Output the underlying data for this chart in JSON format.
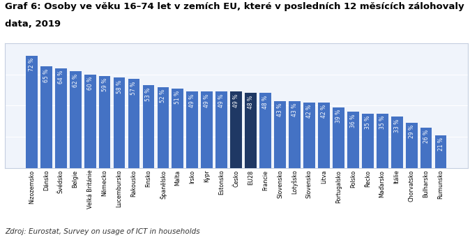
{
  "title_line1": "Graf 6: Osoby ve věku 16–74 let v zemích EU, které v posledních 12 měsících zálohovaly",
  "title_line2": "data, 2019",
  "categories": [
    "Nizozemsko",
    "Dánsko",
    "Švédsko",
    "Belgie",
    "Velká Británie",
    "Německo",
    "Lucembursko",
    "Rakousko",
    "Finsko",
    "Španělsko",
    "Malta",
    "Irsko",
    "Kypr",
    "Estonsko",
    "Česko",
    "EU28",
    "Francie",
    "Slovensko",
    "Lotyšsko",
    "Slovensko",
    "Litva",
    "Portugalsko",
    "Polsko",
    "Řecko",
    "Maďarsko",
    "Itálie",
    "Chorvatsko",
    "Bulharsko",
    "Rumunsko"
  ],
  "values": [
    72,
    65,
    64,
    62,
    60,
    59,
    58,
    57,
    53,
    52,
    51,
    49,
    49,
    49,
    49,
    48,
    48,
    43,
    43,
    42,
    42,
    39,
    36,
    35,
    35,
    33,
    29,
    26,
    21
  ],
  "bar_colors": [
    "#4472c4",
    "#4472c4",
    "#4472c4",
    "#4472c4",
    "#4472c4",
    "#4472c4",
    "#4472c4",
    "#4472c4",
    "#4472c4",
    "#4472c4",
    "#4472c4",
    "#4472c4",
    "#4472c4",
    "#4472c4",
    "#1f3864",
    "#1f3864",
    "#4472c4",
    "#4472c4",
    "#4472c4",
    "#4472c4",
    "#4472c4",
    "#4472c4",
    "#4472c4",
    "#4472c4",
    "#4472c4",
    "#4472c4",
    "#4472c4",
    "#4472c4",
    "#4472c4"
  ],
  "ylim": [
    0,
    80
  ],
  "source": "Zdroj: Eurostat, Survey on usage of ICT in households",
  "background_color": "#ffffff",
  "plot_bg_color": "#f0f4fb",
  "grid_color": "#ffffff",
  "border_color": "#c5cfe0",
  "tick_label_fontsize": 5.8,
  "title_fontsize": 9.5,
  "source_fontsize": 7.5,
  "bar_label_color": "#ffffff",
  "bar_label_fontsize": 5.5
}
